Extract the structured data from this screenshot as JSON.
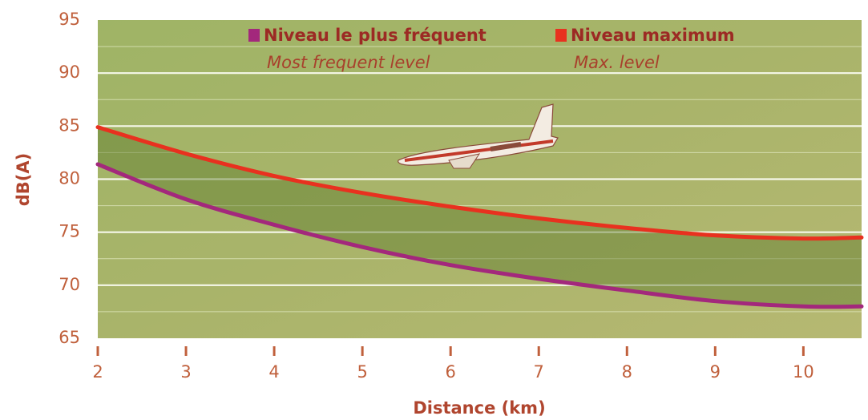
{
  "chart_data": {
    "type": "line",
    "y_label": "dB(A)",
    "x_label": "Distance (km)",
    "x": [
      2,
      3,
      4,
      5,
      6,
      7,
      8,
      9,
      10,
      10.66
    ],
    "series": [
      {
        "name": "Niveau le plus fréquent",
        "subtitle": "Most frequent level",
        "color": "#a3287c",
        "values": [
          81.4,
          78.1,
          75.7,
          73.6,
          71.9,
          70.6,
          69.5,
          68.5,
          68.0,
          68.0
        ]
      },
      {
        "name": "Niveau maximum",
        "subtitle": "Max. level",
        "color": "#e8311f",
        "values": [
          84.9,
          82.4,
          80.3,
          78.7,
          77.4,
          76.3,
          75.4,
          74.7,
          74.4,
          74.5
        ]
      }
    ],
    "xlim": [
      2,
      10.66
    ],
    "xticks": [
      2,
      3,
      4,
      5,
      6,
      7,
      8,
      9,
      10
    ],
    "ylim": [
      65,
      95
    ],
    "yticks": [
      65,
      70,
      75,
      80,
      85,
      90,
      95
    ],
    "minor_yticks": [
      67.5,
      72.5,
      77.5,
      82.5,
      87.5,
      92.5
    ],
    "grid": true,
    "fill_between": true
  }
}
